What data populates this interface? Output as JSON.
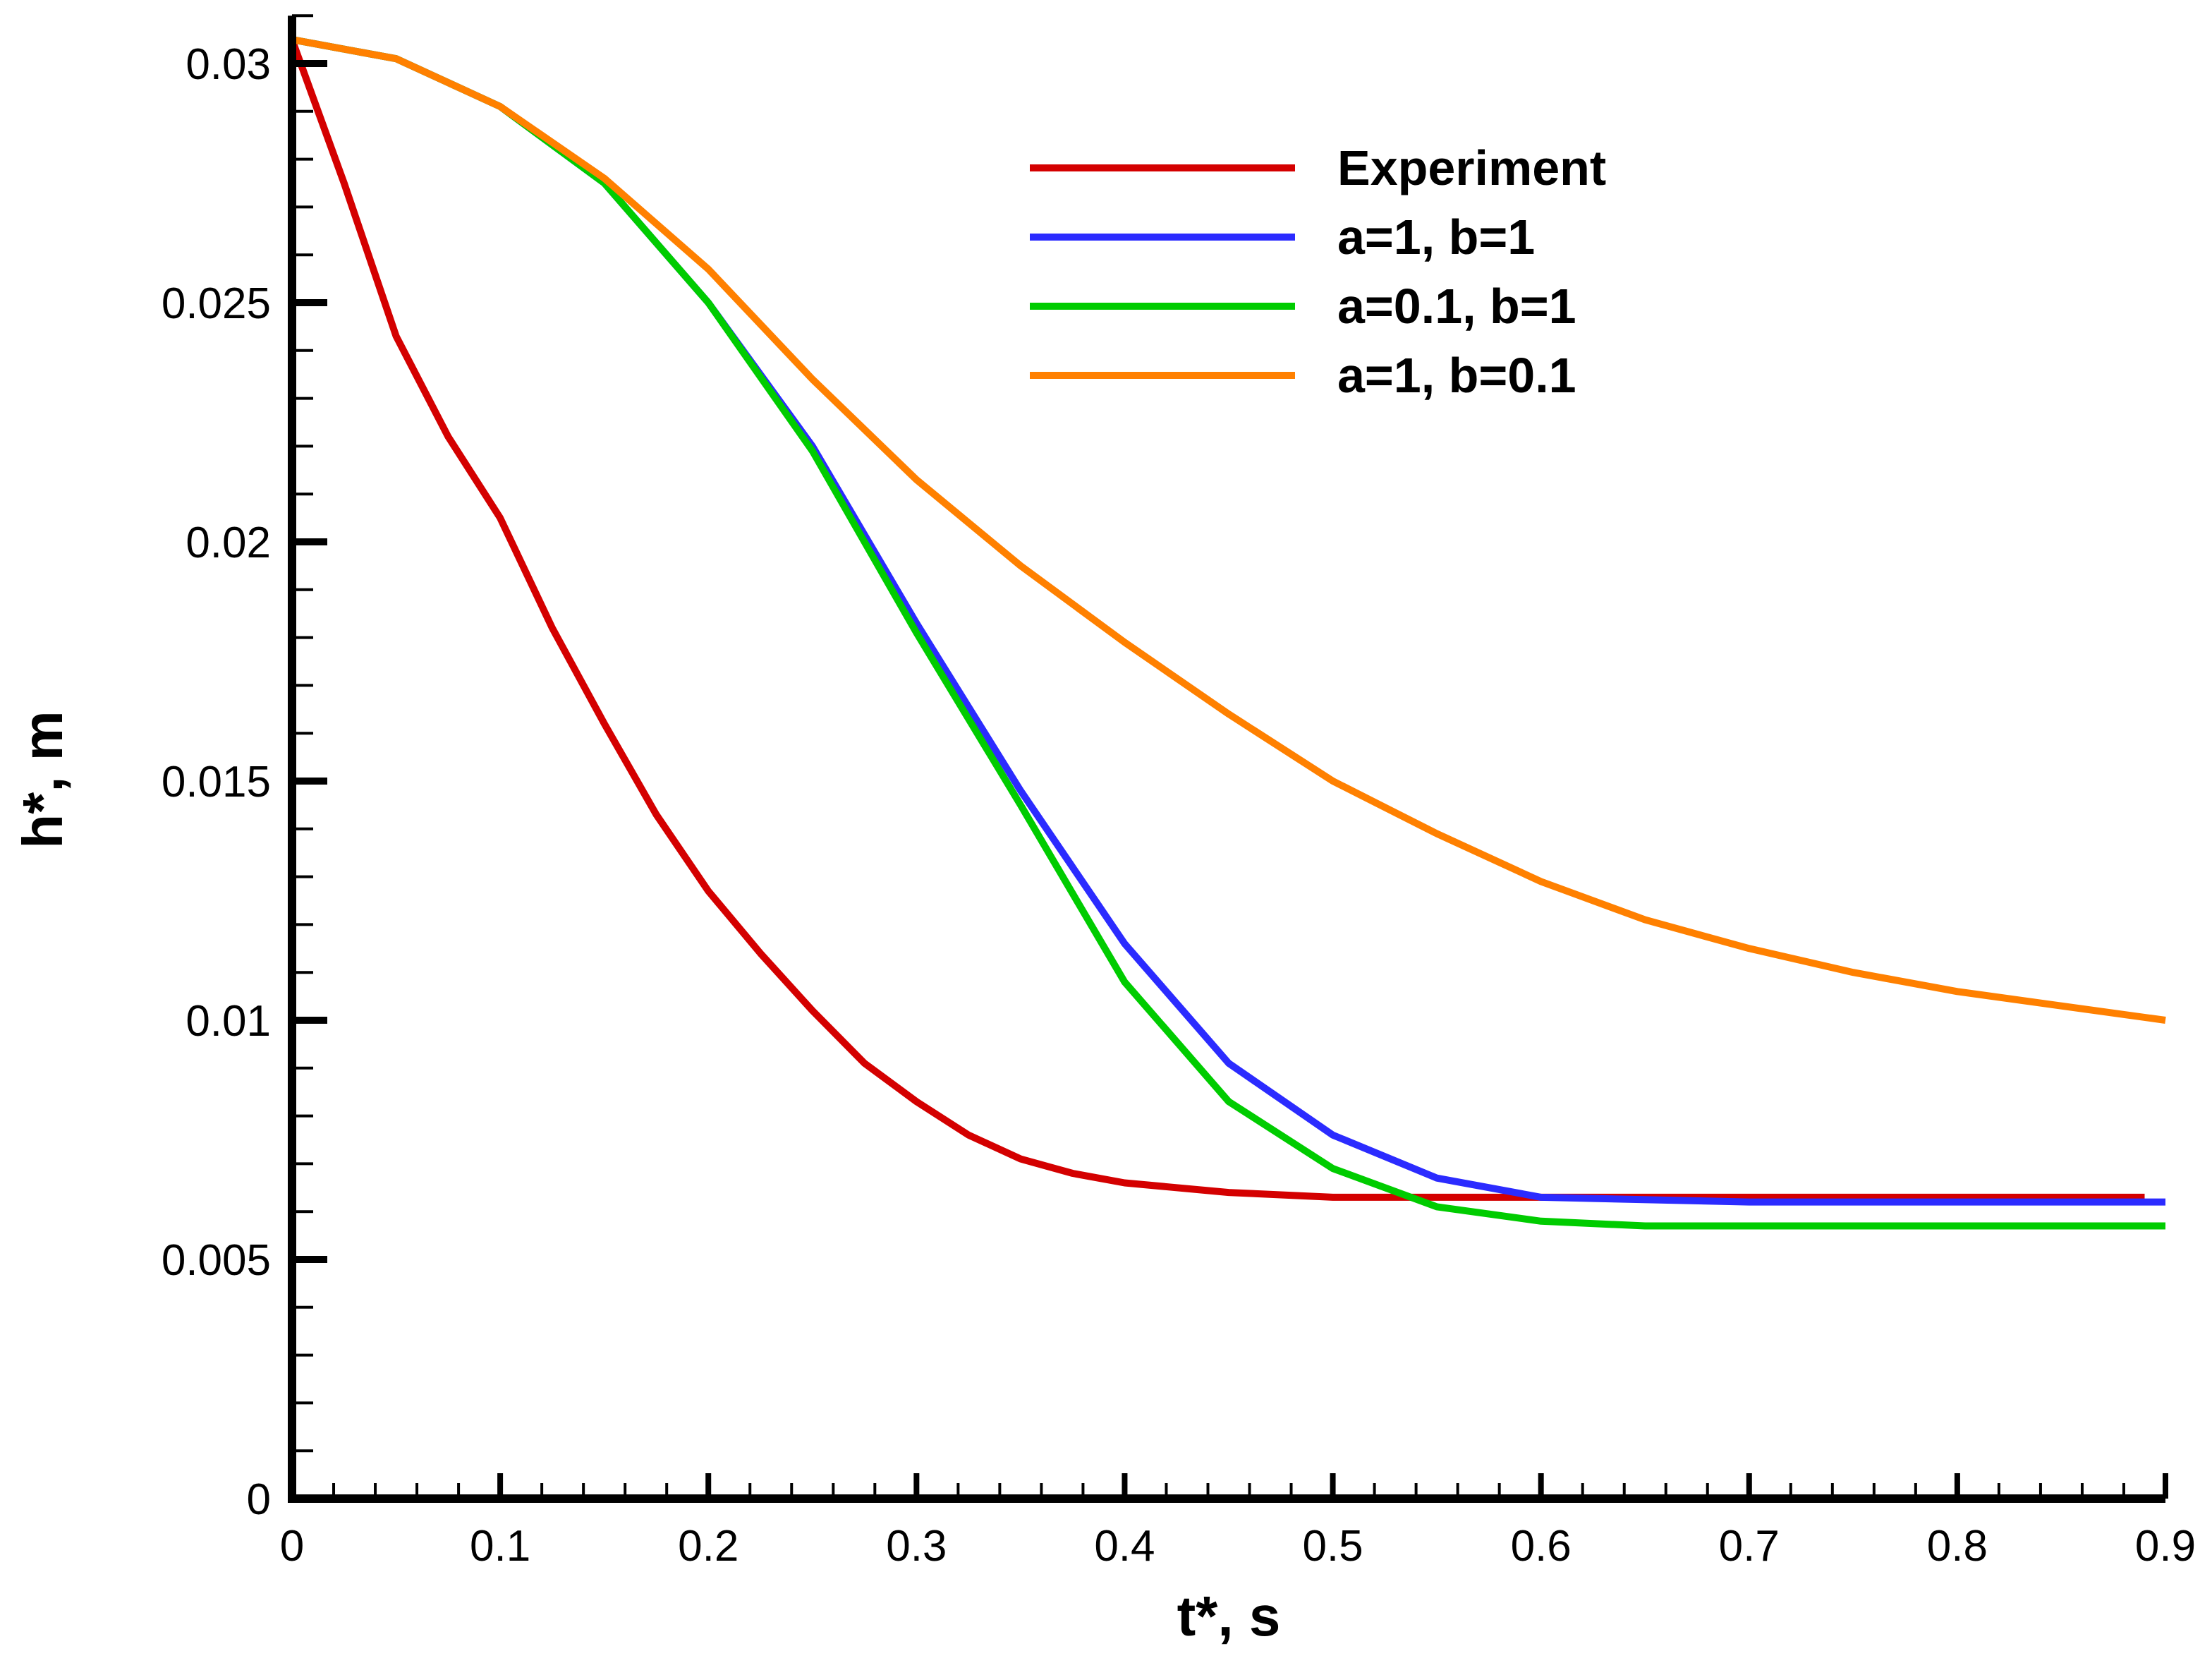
{
  "chart_data": {
    "type": "line",
    "title": "",
    "xlabel": "t*, s",
    "ylabel": "h*, m",
    "xlim": [
      0,
      0.9
    ],
    "ylim": [
      0,
      0.031
    ],
    "xticks": [
      "0",
      "0.1",
      "0.2",
      "0.3",
      "0.4",
      "0.5",
      "0.6",
      "0.7",
      "0.8",
      "0.9"
    ],
    "yticks": [
      "0",
      "0.005",
      "0.01",
      "0.015",
      "0.02",
      "0.025",
      "0.03"
    ],
    "grid": false,
    "legend_position": "top-right",
    "series": [
      {
        "name": "Experiment",
        "color": "#d40000",
        "x": [
          0,
          0.025,
          0.05,
          0.075,
          0.1,
          0.125,
          0.15,
          0.175,
          0.2,
          0.225,
          0.25,
          0.275,
          0.3,
          0.325,
          0.35,
          0.375,
          0.4,
          0.45,
          0.5,
          0.6,
          0.7,
          0.8,
          0.89
        ],
        "y": [
          0.0305,
          0.0275,
          0.0243,
          0.0222,
          0.0205,
          0.0182,
          0.0162,
          0.0143,
          0.0127,
          0.0114,
          0.0102,
          0.0091,
          0.0083,
          0.0076,
          0.0071,
          0.0068,
          0.0066,
          0.0064,
          0.0063,
          0.0063,
          0.0063,
          0.0063,
          0.0063
        ]
      },
      {
        "name": "a=1, b=1",
        "color": "#2b2bff",
        "x": [
          0,
          0.05,
          0.1,
          0.15,
          0.2,
          0.25,
          0.3,
          0.35,
          0.4,
          0.45,
          0.5,
          0.55,
          0.6,
          0.7,
          0.8,
          0.9
        ],
        "y": [
          0.0305,
          0.0301,
          0.0291,
          0.0275,
          0.025,
          0.022,
          0.0183,
          0.0148,
          0.0116,
          0.0091,
          0.0076,
          0.0067,
          0.0063,
          0.0062,
          0.0062,
          0.0062
        ]
      },
      {
        "name": "a=0.1, b=1",
        "color": "#00cc00",
        "x": [
          0,
          0.05,
          0.1,
          0.15,
          0.2,
          0.25,
          0.3,
          0.35,
          0.4,
          0.45,
          0.5,
          0.55,
          0.6,
          0.65,
          0.7,
          0.8,
          0.9
        ],
        "y": [
          0.0305,
          0.0301,
          0.0291,
          0.0275,
          0.025,
          0.0219,
          0.0181,
          0.0145,
          0.0108,
          0.0083,
          0.0069,
          0.0061,
          0.0058,
          0.0057,
          0.0057,
          0.0057,
          0.0057
        ]
      },
      {
        "name": "a=1, b=0.1",
        "color": "#ff8000",
        "x": [
          0,
          0.05,
          0.1,
          0.15,
          0.2,
          0.25,
          0.3,
          0.35,
          0.4,
          0.45,
          0.5,
          0.55,
          0.6,
          0.65,
          0.7,
          0.75,
          0.8,
          0.85,
          0.9
        ],
        "y": [
          0.0305,
          0.0301,
          0.0291,
          0.0276,
          0.0257,
          0.0234,
          0.0213,
          0.0195,
          0.0179,
          0.0164,
          0.015,
          0.0139,
          0.0129,
          0.0121,
          0.0115,
          0.011,
          0.0106,
          0.0103,
          0.01
        ]
      }
    ]
  }
}
